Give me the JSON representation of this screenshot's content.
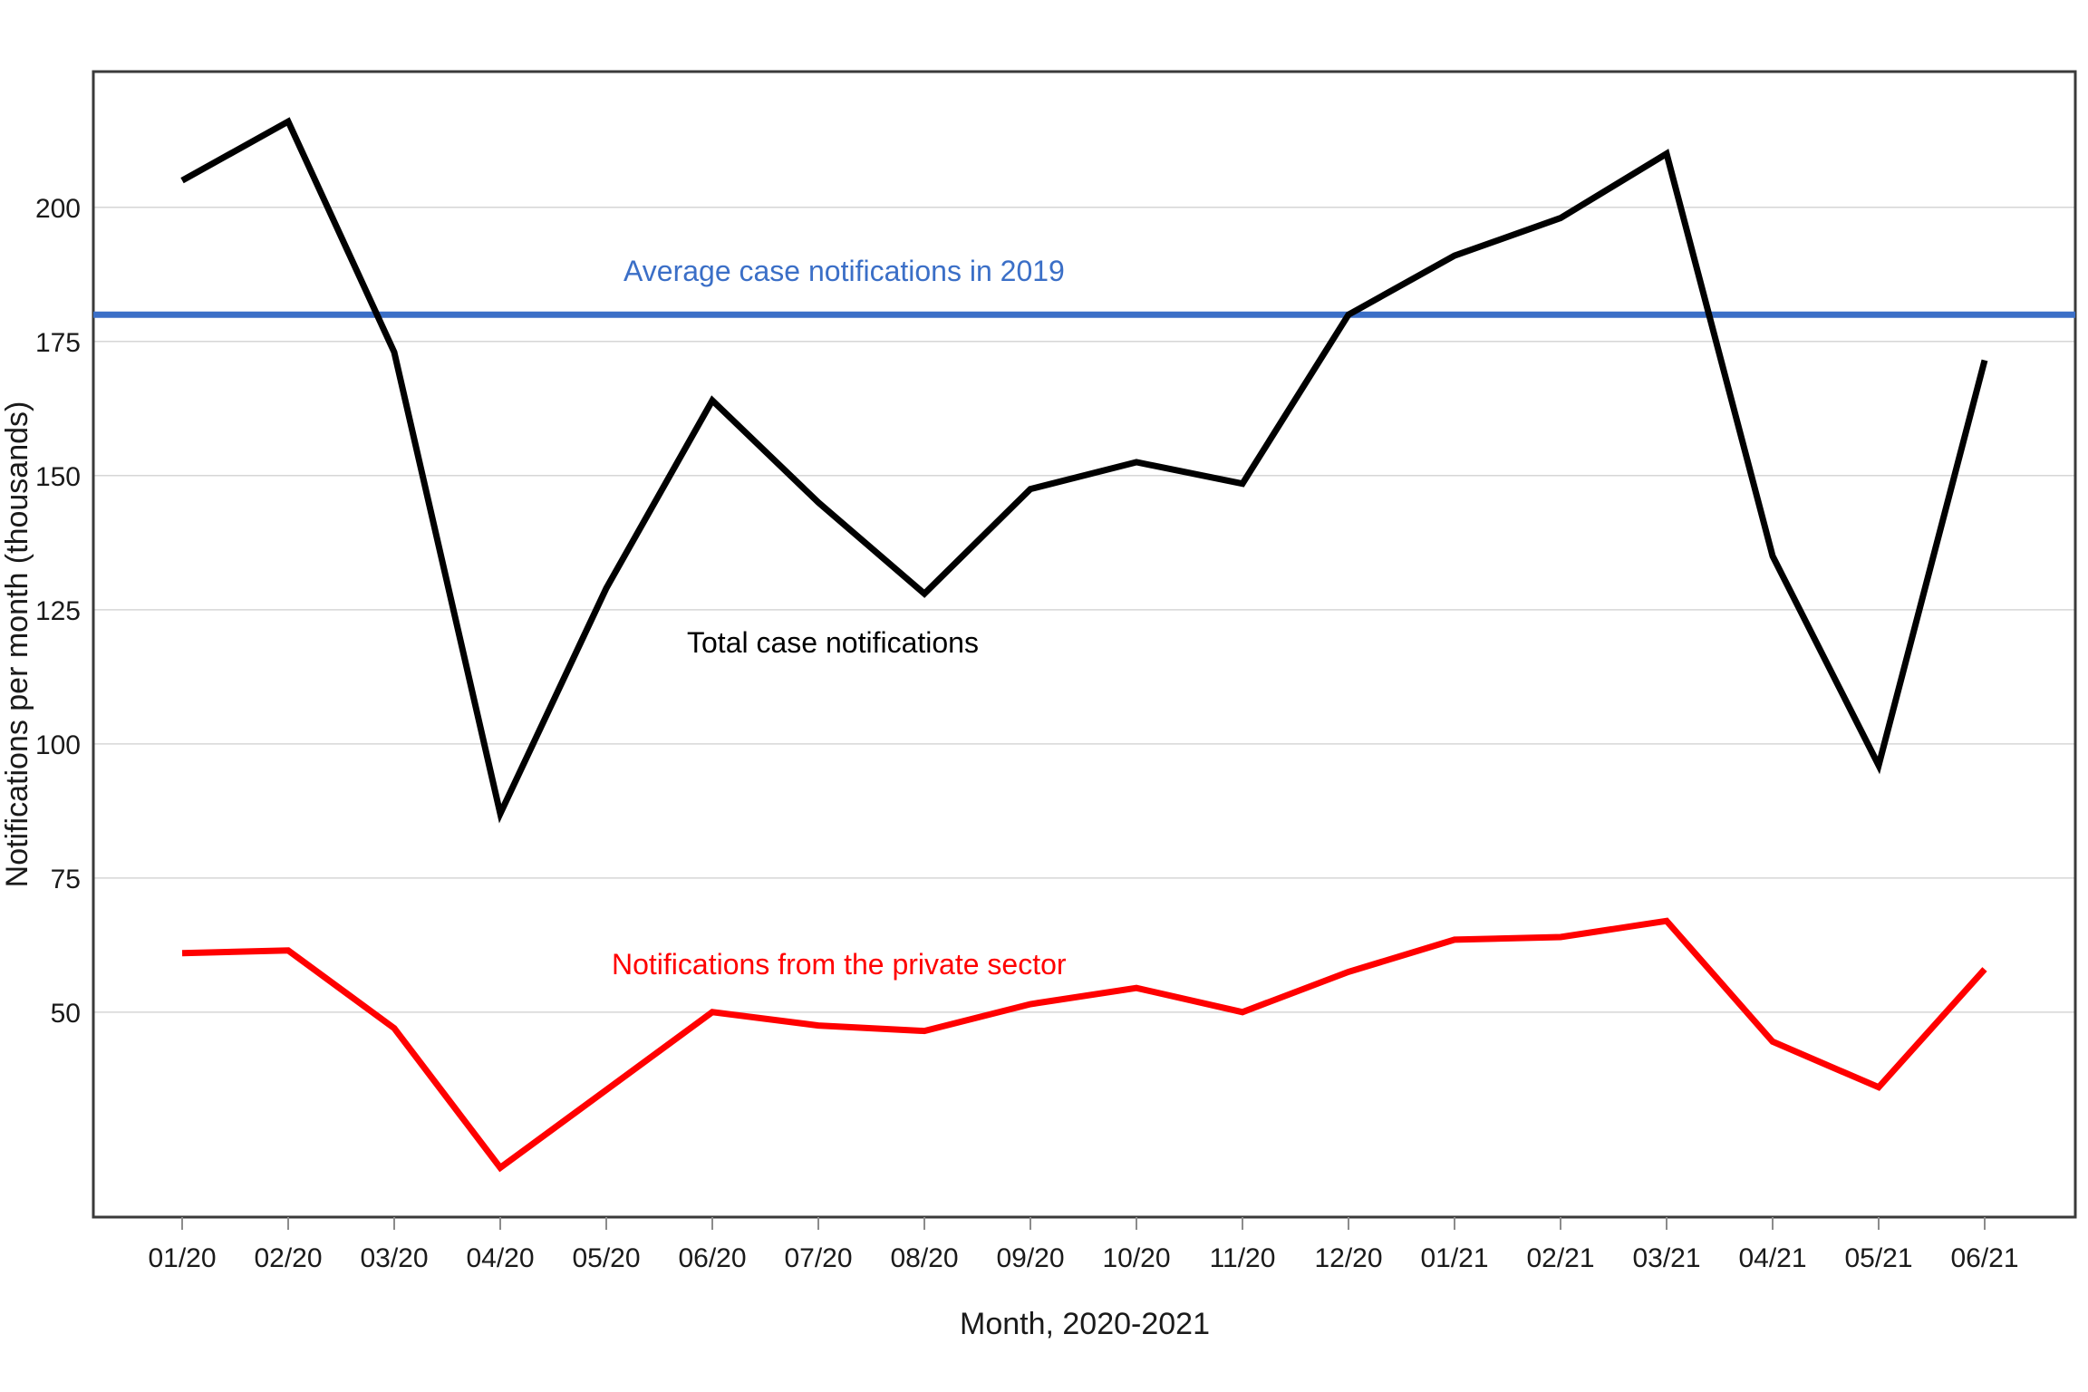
{
  "chart_data": {
    "type": "line",
    "title": "",
    "xlabel": "Month, 2020-2021",
    "ylabel": "Notifications per month (thousands)",
    "categories": [
      "01/20",
      "02/20",
      "03/20",
      "04/20",
      "05/20",
      "06/20",
      "07/20",
      "08/20",
      "09/20",
      "10/20",
      "11/20",
      "12/20",
      "01/21",
      "02/21",
      "03/21",
      "04/21",
      "05/21",
      "06/21"
    ],
    "y_ticks": [
      50,
      75,
      100,
      125,
      150,
      175,
      200
    ],
    "ylim": [
      11.8,
      225.3
    ],
    "grid": "horizontal-only",
    "legend_position": "none (labels annotated on plot)",
    "series": [
      {
        "name": "Total case notifications",
        "color": "#000000",
        "values": [
          205,
          216,
          173,
          87,
          129,
          164,
          145,
          128,
          147.5,
          152.5,
          148.5,
          180,
          191,
          198,
          210,
          135,
          96,
          171.5
        ]
      },
      {
        "name": "Notifications from the private sector",
        "color": "#FF0000",
        "values": [
          61,
          61.5,
          47,
          21,
          35.5,
          50,
          47.5,
          46.5,
          51.5,
          54.5,
          50,
          57.5,
          63.5,
          64,
          67,
          44.5,
          36,
          58
        ]
      }
    ],
    "reference_line": {
      "value": 180,
      "label": "Average case notifications in 2019",
      "color": "#3B6FC7"
    },
    "annotations": [
      {
        "text": "Average case notifications in 2019",
        "color": "#3B6FC7"
      },
      {
        "text": "Total case notifications",
        "color": "#000000"
      },
      {
        "text": "Notifications from the private sector",
        "color": "#FF0000"
      }
    ],
    "colors": {
      "background": "#FFFFFF",
      "plot_border": "#3A3A3A",
      "gridline": "#D6D6D6",
      "tick_mark": "#8C8C8C"
    }
  }
}
